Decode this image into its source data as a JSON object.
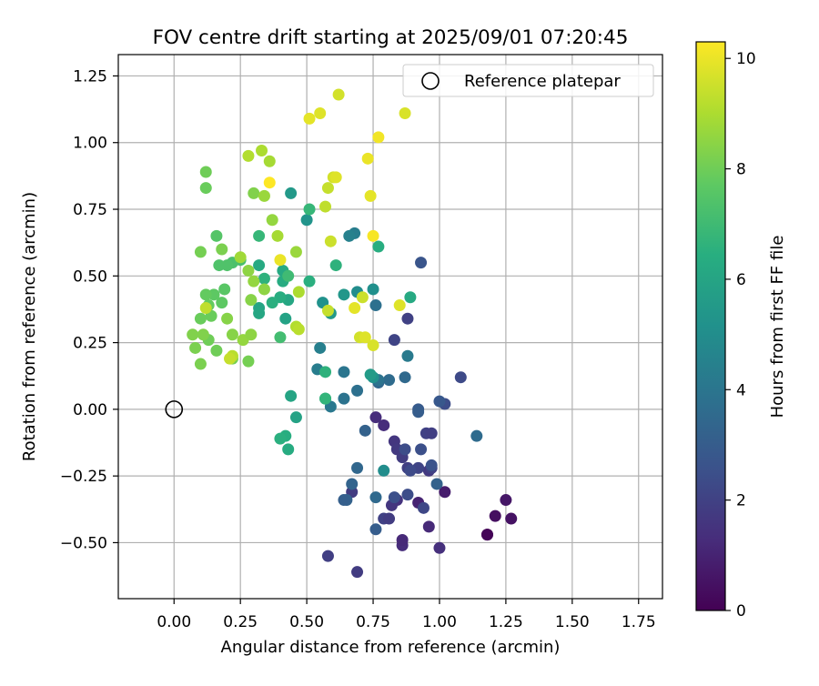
{
  "chart_data": {
    "type": "scatter",
    "title": "FOV centre drift starting at 2025/09/01 07:20:45",
    "xlabel": "Angular distance from reference (arcmin)",
    "ylabel": "Rotation from reference (arcmin)",
    "xlim": [
      -0.21,
      1.84
    ],
    "ylim": [
      -0.71,
      1.33
    ],
    "xticks": [
      "0.00",
      "0.25",
      "0.50",
      "0.75",
      "1.00",
      "1.25",
      "1.50",
      "1.75"
    ],
    "xtick_values": [
      0,
      0.25,
      0.5,
      0.75,
      1.0,
      1.25,
      1.5,
      1.75
    ],
    "yticks": [
      "−0.50",
      "−0.25",
      "0.00",
      "0.25",
      "0.50",
      "0.75",
      "1.00",
      "1.25"
    ],
    "ytick_values": [
      -0.5,
      -0.25,
      0,
      0.25,
      0.5,
      0.75,
      1.0,
      1.25
    ],
    "grid": true,
    "legend": {
      "position": "top-right",
      "entries": [
        "Reference platepar"
      ]
    },
    "reference_point": {
      "x": 0.0,
      "y": 0.0
    },
    "colorbar": {
      "label": "Hours from first FF file",
      "colormap": "viridis",
      "range": [
        0,
        10.3
      ],
      "ticks": [
        "0",
        "2",
        "4",
        "6",
        "8",
        "10"
      ],
      "tick_values": [
        0,
        2,
        4,
        6,
        8,
        10
      ]
    },
    "points": [
      {
        "x": 1.18,
        "y": -0.47,
        "c": 0.0
      },
      {
        "x": 1.18,
        "y": -0.47,
        "c": 0.1
      },
      {
        "x": 1.21,
        "y": -0.4,
        "c": 0.4
      },
      {
        "x": 1.25,
        "y": -0.34,
        "c": 0.6
      },
      {
        "x": 1.27,
        "y": -0.41,
        "c": 0.5
      },
      {
        "x": 1.02,
        "y": -0.31,
        "c": 0.8
      },
      {
        "x": 0.92,
        "y": -0.35,
        "c": 1.0
      },
      {
        "x": 0.96,
        "y": -0.44,
        "c": 1.2
      },
      {
        "x": 1.0,
        "y": -0.52,
        "c": 1.4
      },
      {
        "x": 0.86,
        "y": -0.51,
        "c": 1.3
      },
      {
        "x": 0.86,
        "y": -0.49,
        "c": 1.2
      },
      {
        "x": 0.76,
        "y": -0.03,
        "c": 1.3
      },
      {
        "x": 0.79,
        "y": -0.06,
        "c": 1.3
      },
      {
        "x": 0.83,
        "y": -0.12,
        "c": 1.6
      },
      {
        "x": 0.84,
        "y": -0.15,
        "c": 1.7
      },
      {
        "x": 0.86,
        "y": -0.18,
        "c": 1.8
      },
      {
        "x": 0.88,
        "y": -0.22,
        "c": 1.9
      },
      {
        "x": 0.84,
        "y": -0.34,
        "c": 1.5
      },
      {
        "x": 0.82,
        "y": -0.36,
        "c": 1.6
      },
      {
        "x": 0.79,
        "y": -0.41,
        "c": 2.0
      },
      {
        "x": 0.81,
        "y": -0.41,
        "c": 1.8
      },
      {
        "x": 0.96,
        "y": -0.23,
        "c": 1.7
      },
      {
        "x": 0.97,
        "y": -0.22,
        "c": 2.0
      },
      {
        "x": 0.92,
        "y": -0.22,
        "c": 2.1
      },
      {
        "x": 0.95,
        "y": -0.09,
        "c": 2.0
      },
      {
        "x": 0.97,
        "y": -0.09,
        "c": 1.9
      },
      {
        "x": 0.58,
        "y": -0.55,
        "c": 1.9
      },
      {
        "x": 0.69,
        "y": -0.61,
        "c": 1.8
      },
      {
        "x": 0.67,
        "y": -0.31,
        "c": 1.8
      },
      {
        "x": 0.93,
        "y": -0.15,
        "c": 2.5
      },
      {
        "x": 0.87,
        "y": -0.15,
        "c": 2.4
      },
      {
        "x": 0.94,
        "y": -0.37,
        "c": 2.2
      },
      {
        "x": 0.89,
        "y": -0.23,
        "c": 2.3
      },
      {
        "x": 0.88,
        "y": -0.32,
        "c": 2.4
      },
      {
        "x": 0.83,
        "y": -0.33,
        "c": 2.5
      },
      {
        "x": 0.97,
        "y": -0.21,
        "c": 2.6
      },
      {
        "x": 0.88,
        "y": 0.34,
        "c": 2.0
      },
      {
        "x": 0.83,
        "y": 0.26,
        "c": 2.1
      },
      {
        "x": 0.93,
        "y": 0.55,
        "c": 2.7
      },
      {
        "x": 1.08,
        "y": 0.12,
        "c": 2.3
      },
      {
        "x": 1.02,
        "y": 0.02,
        "c": 2.4
      },
      {
        "x": 1.0,
        "y": 0.03,
        "c": 2.8
      },
      {
        "x": 0.92,
        "y": 0.0,
        "c": 2.9
      },
      {
        "x": 0.92,
        "y": -0.01,
        "c": 3.0
      },
      {
        "x": 0.76,
        "y": -0.45,
        "c": 3.0
      },
      {
        "x": 0.99,
        "y": -0.28,
        "c": 3.2
      },
      {
        "x": 0.65,
        "y": -0.34,
        "c": 3.2
      },
      {
        "x": 0.64,
        "y": -0.34,
        "c": 3.1
      },
      {
        "x": 0.67,
        "y": -0.28,
        "c": 3.3
      },
      {
        "x": 0.72,
        "y": -0.08,
        "c": 3.2
      },
      {
        "x": 0.69,
        "y": -0.22,
        "c": 3.4
      },
      {
        "x": 0.76,
        "y": -0.33,
        "c": 3.5
      },
      {
        "x": 1.14,
        "y": -0.1,
        "c": 3.6
      },
      {
        "x": 0.87,
        "y": 0.12,
        "c": 3.5
      },
      {
        "x": 0.81,
        "y": 0.11,
        "c": 3.6
      },
      {
        "x": 0.77,
        "y": 0.1,
        "c": 3.4
      },
      {
        "x": 0.76,
        "y": 0.39,
        "c": 3.8
      },
      {
        "x": 0.77,
        "y": 0.11,
        "c": 3.9
      },
      {
        "x": 0.69,
        "y": 0.07,
        "c": 3.8
      },
      {
        "x": 0.64,
        "y": 0.04,
        "c": 3.9
      },
      {
        "x": 0.64,
        "y": 0.14,
        "c": 4.0
      },
      {
        "x": 0.59,
        "y": 0.01,
        "c": 4.1
      },
      {
        "x": 0.54,
        "y": 0.15,
        "c": 4.3
      },
      {
        "x": 0.55,
        "y": 0.23,
        "c": 4.4
      },
      {
        "x": 0.68,
        "y": 0.66,
        "c": 4.3
      },
      {
        "x": 0.66,
        "y": 0.65,
        "c": 4.5
      },
      {
        "x": 0.88,
        "y": 0.2,
        "c": 4.2
      },
      {
        "x": 0.79,
        "y": -0.23,
        "c": 5.0
      },
      {
        "x": 0.75,
        "y": 0.12,
        "c": 5.2
      },
      {
        "x": 0.75,
        "y": 0.45,
        "c": 5.1
      },
      {
        "x": 0.69,
        "y": 0.44,
        "c": 5.0
      },
      {
        "x": 0.5,
        "y": 0.71,
        "c": 5.3
      },
      {
        "x": 0.44,
        "y": 0.81,
        "c": 5.5
      },
      {
        "x": 0.56,
        "y": 0.4,
        "c": 5.2
      },
      {
        "x": 0.64,
        "y": 0.43,
        "c": 5.4
      },
      {
        "x": 0.59,
        "y": 0.36,
        "c": 5.5
      },
      {
        "x": 0.89,
        "y": 0.42,
        "c": 6.2
      },
      {
        "x": 0.77,
        "y": 0.61,
        "c": 6.4
      },
      {
        "x": 0.74,
        "y": 0.13,
        "c": 5.6
      },
      {
        "x": 0.57,
        "y": 0.04,
        "c": 5.8
      },
      {
        "x": 0.46,
        "y": -0.03,
        "c": 5.9
      },
      {
        "x": 0.44,
        "y": 0.05,
        "c": 6.0
      },
      {
        "x": 0.43,
        "y": -0.15,
        "c": 6.3
      },
      {
        "x": 0.42,
        "y": -0.1,
        "c": 6.4
      },
      {
        "x": 0.4,
        "y": -0.11,
        "c": 6.5
      },
      {
        "x": 0.57,
        "y": 0.14,
        "c": 6.6
      },
      {
        "x": 0.57,
        "y": 0.04,
        "c": 6.7
      },
      {
        "x": 0.61,
        "y": 0.54,
        "c": 6.6
      },
      {
        "x": 0.51,
        "y": 0.75,
        "c": 6.8
      },
      {
        "x": 0.51,
        "y": 0.48,
        "c": 6.5
      },
      {
        "x": 0.42,
        "y": 0.34,
        "c": 5.9
      },
      {
        "x": 0.43,
        "y": 0.41,
        "c": 6.1
      },
      {
        "x": 0.41,
        "y": 0.52,
        "c": 6.2
      },
      {
        "x": 0.41,
        "y": 0.48,
        "c": 6.3
      },
      {
        "x": 0.4,
        "y": 0.42,
        "c": 6.4
      },
      {
        "x": 0.37,
        "y": 0.4,
        "c": 6.5
      },
      {
        "x": 0.34,
        "y": 0.49,
        "c": 6.6
      },
      {
        "x": 0.32,
        "y": 0.38,
        "c": 6.0
      },
      {
        "x": 0.32,
        "y": 0.36,
        "c": 6.1
      },
      {
        "x": 0.32,
        "y": 0.54,
        "c": 6.2
      },
      {
        "x": 0.32,
        "y": 0.65,
        "c": 6.8
      },
      {
        "x": 0.43,
        "y": 0.5,
        "c": 7.0
      },
      {
        "x": 0.4,
        "y": 0.27,
        "c": 7.1
      },
      {
        "x": 0.25,
        "y": 0.56,
        "c": 7.2
      },
      {
        "x": 0.22,
        "y": 0.55,
        "c": 7.3
      },
      {
        "x": 0.2,
        "y": 0.54,
        "c": 7.4
      },
      {
        "x": 0.17,
        "y": 0.54,
        "c": 7.4
      },
      {
        "x": 0.16,
        "y": 0.65,
        "c": 7.5
      },
      {
        "x": 0.19,
        "y": 0.45,
        "c": 7.6
      },
      {
        "x": 0.18,
        "y": 0.4,
        "c": 7.7
      },
      {
        "x": 0.15,
        "y": 0.43,
        "c": 7.7
      },
      {
        "x": 0.12,
        "y": 0.43,
        "c": 7.8
      },
      {
        "x": 0.13,
        "y": 0.39,
        "c": 7.8
      },
      {
        "x": 0.14,
        "y": 0.35,
        "c": 7.9
      },
      {
        "x": 0.1,
        "y": 0.34,
        "c": 7.9
      },
      {
        "x": 0.13,
        "y": 0.26,
        "c": 8.0
      },
      {
        "x": 0.16,
        "y": 0.22,
        "c": 8.0
      },
      {
        "x": 0.22,
        "y": 0.19,
        "c": 8.1
      },
      {
        "x": 0.28,
        "y": 0.18,
        "c": 8.1
      },
      {
        "x": 0.1,
        "y": 0.17,
        "c": 8.2
      },
      {
        "x": 0.08,
        "y": 0.23,
        "c": 8.2
      },
      {
        "x": 0.07,
        "y": 0.28,
        "c": 8.3
      },
      {
        "x": 0.11,
        "y": 0.28,
        "c": 8.3
      },
      {
        "x": 0.1,
        "y": 0.59,
        "c": 8.1
      },
      {
        "x": 0.18,
        "y": 0.6,
        "c": 8.2
      },
      {
        "x": 0.12,
        "y": 0.83,
        "c": 7.9
      },
      {
        "x": 0.12,
        "y": 0.89,
        "c": 8.0
      },
      {
        "x": 0.2,
        "y": 0.34,
        "c": 8.4
      },
      {
        "x": 0.22,
        "y": 0.28,
        "c": 8.4
      },
      {
        "x": 0.26,
        "y": 0.26,
        "c": 8.6
      },
      {
        "x": 0.29,
        "y": 0.28,
        "c": 8.5
      },
      {
        "x": 0.29,
        "y": 0.41,
        "c": 8.4
      },
      {
        "x": 0.3,
        "y": 0.48,
        "c": 8.6
      },
      {
        "x": 0.28,
        "y": 0.52,
        "c": 8.5
      },
      {
        "x": 0.25,
        "y": 0.57,
        "c": 8.8
      },
      {
        "x": 0.3,
        "y": 0.81,
        "c": 8.3
      },
      {
        "x": 0.34,
        "y": 0.8,
        "c": 8.7
      },
      {
        "x": 0.37,
        "y": 0.71,
        "c": 8.6
      },
      {
        "x": 0.39,
        "y": 0.65,
        "c": 8.9
      },
      {
        "x": 0.46,
        "y": 0.59,
        "c": 8.7
      },
      {
        "x": 0.34,
        "y": 0.45,
        "c": 8.5
      },
      {
        "x": 0.36,
        "y": 0.93,
        "c": 8.9
      },
      {
        "x": 0.33,
        "y": 0.97,
        "c": 9.0
      },
      {
        "x": 0.28,
        "y": 0.95,
        "c": 9.1
      },
      {
        "x": 0.47,
        "y": 0.44,
        "c": 9.0
      },
      {
        "x": 0.46,
        "y": 0.31,
        "c": 9.1
      },
      {
        "x": 0.47,
        "y": 0.3,
        "c": 9.2
      },
      {
        "x": 0.22,
        "y": 0.2,
        "c": 9.2
      },
      {
        "x": 0.21,
        "y": 0.19,
        "c": 9.4
      },
      {
        "x": 0.12,
        "y": 0.38,
        "c": 9.3
      },
      {
        "x": 0.57,
        "y": 0.76,
        "c": 9.3
      },
      {
        "x": 0.58,
        "y": 0.83,
        "c": 9.4
      },
      {
        "x": 0.59,
        "y": 0.63,
        "c": 9.5
      },
      {
        "x": 0.6,
        "y": 0.87,
        "c": 9.6
      },
      {
        "x": 0.58,
        "y": 0.37,
        "c": 9.4
      },
      {
        "x": 0.71,
        "y": 0.42,
        "c": 9.5
      },
      {
        "x": 0.7,
        "y": 0.27,
        "c": 9.6
      },
      {
        "x": 0.72,
        "y": 0.27,
        "c": 9.8
      },
      {
        "x": 0.75,
        "y": 0.24,
        "c": 9.7
      },
      {
        "x": 0.68,
        "y": 0.38,
        "c": 9.9
      },
      {
        "x": 0.85,
        "y": 0.39,
        "c": 9.8
      },
      {
        "x": 0.74,
        "y": 0.8,
        "c": 9.9
      },
      {
        "x": 0.62,
        "y": 1.18,
        "c": 9.6
      },
      {
        "x": 0.55,
        "y": 1.11,
        "c": 9.8
      },
      {
        "x": 0.51,
        "y": 1.09,
        "c": 9.9
      },
      {
        "x": 0.87,
        "y": 1.11,
        "c": 9.7
      },
      {
        "x": 0.73,
        "y": 0.94,
        "c": 10.0
      },
      {
        "x": 0.77,
        "y": 1.02,
        "c": 10.1
      },
      {
        "x": 0.61,
        "y": 0.87,
        "c": 9.8
      },
      {
        "x": 0.75,
        "y": 0.65,
        "c": 10.2
      },
      {
        "x": 0.4,
        "y": 0.56,
        "c": 10.0
      },
      {
        "x": 0.36,
        "y": 0.85,
        "c": 10.3
      }
    ]
  }
}
